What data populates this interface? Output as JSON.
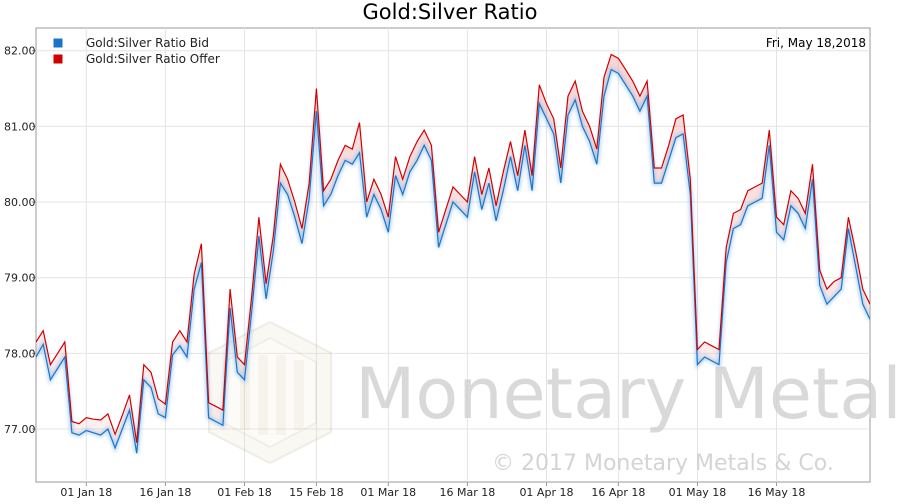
{
  "chart_data": {
    "type": "line",
    "title": "Gold:Silver Ratio",
    "date_label": "Fri, May 18,2018",
    "ylim": [
      76.3,
      82.3
    ],
    "y_ticks": [
      "82.00",
      "81.00",
      "80.00",
      "79.00",
      "78.00",
      "77.00"
    ],
    "y_tick_values": [
      82,
      81,
      80,
      79,
      78,
      77
    ],
    "x_ticks": [
      {
        "label": "01 Jan 18",
        "index": 7
      },
      {
        "label": "16 Jan 18",
        "index": 18
      },
      {
        "label": "01 Feb 18",
        "index": 29
      },
      {
        "label": "15 Feb 18",
        "index": 39
      },
      {
        "label": "01 Mar 18",
        "index": 49
      },
      {
        "label": "16 Mar 18",
        "index": 60
      },
      {
        "label": "01 Apr 18",
        "index": 71
      },
      {
        "label": "16 Apr 18",
        "index": 81
      },
      {
        "label": "01 May 18",
        "index": 92
      },
      {
        "label": "16 May 18",
        "index": 103
      }
    ],
    "grid": true,
    "legend_position": "top-left",
    "series": [
      {
        "name": "Gold:Silver Ratio Bid",
        "color": "#1a75c9",
        "values": [
          77.95,
          78.12,
          77.65,
          77.8,
          77.95,
          76.95,
          76.92,
          76.98,
          76.95,
          76.92,
          77.0,
          76.75,
          77.0,
          77.25,
          76.68,
          77.65,
          77.55,
          77.2,
          77.15,
          77.98,
          78.1,
          77.95,
          78.85,
          79.2,
          77.15,
          77.1,
          77.05,
          78.6,
          77.75,
          77.65,
          78.55,
          79.55,
          78.72,
          79.35,
          80.25,
          80.1,
          79.8,
          79.45,
          80.05,
          81.2,
          79.95,
          80.1,
          80.35,
          80.55,
          80.5,
          80.65,
          79.8,
          80.1,
          79.9,
          79.6,
          80.35,
          80.1,
          80.4,
          80.55,
          80.75,
          80.55,
          79.4,
          79.7,
          80.0,
          79.9,
          79.8,
          80.4,
          79.9,
          80.25,
          79.75,
          80.15,
          80.6,
          80.15,
          80.75,
          80.15,
          81.3,
          81.1,
          80.9,
          80.25,
          81.15,
          81.35,
          81.0,
          80.8,
          80.5,
          81.4,
          81.75,
          81.7,
          81.55,
          81.4,
          81.2,
          81.4,
          80.25,
          80.25,
          80.55,
          80.85,
          80.9,
          80.1,
          77.85,
          77.95,
          77.9,
          77.85,
          79.2,
          79.65,
          79.7,
          79.95,
          80.0,
          80.05,
          80.75,
          79.6,
          79.5,
          79.95,
          79.85,
          79.65,
          80.3,
          78.9,
          78.65,
          78.75,
          78.85,
          79.65,
          79.15,
          78.65,
          78.45
        ]
      },
      {
        "name": "Gold:Silver Ratio Offer",
        "color": "#d10000",
        "values": [
          78.15,
          78.3,
          77.85,
          78.0,
          78.15,
          77.1,
          77.07,
          77.15,
          77.13,
          77.12,
          77.2,
          76.93,
          77.18,
          77.45,
          76.82,
          77.85,
          77.75,
          77.4,
          77.33,
          78.15,
          78.3,
          78.15,
          79.05,
          79.45,
          77.35,
          77.3,
          77.25,
          78.85,
          77.95,
          77.85,
          78.75,
          79.8,
          78.92,
          79.55,
          80.5,
          80.3,
          80.0,
          79.65,
          80.25,
          81.5,
          80.15,
          80.3,
          80.55,
          80.75,
          80.7,
          81.05,
          80.0,
          80.3,
          80.1,
          79.8,
          80.6,
          80.3,
          80.6,
          80.8,
          80.95,
          80.75,
          79.6,
          79.9,
          80.2,
          80.1,
          80.0,
          80.6,
          80.1,
          80.45,
          79.95,
          80.4,
          80.8,
          80.35,
          80.95,
          80.35,
          81.55,
          81.3,
          81.1,
          80.45,
          81.4,
          81.6,
          81.2,
          81.0,
          80.7,
          81.65,
          81.95,
          81.9,
          81.75,
          81.6,
          81.4,
          81.6,
          80.45,
          80.45,
          80.75,
          81.1,
          81.15,
          80.3,
          78.05,
          78.15,
          78.1,
          78.05,
          79.4,
          79.85,
          79.9,
          80.15,
          80.2,
          80.25,
          80.95,
          79.8,
          79.7,
          80.15,
          80.05,
          79.85,
          80.5,
          79.1,
          78.85,
          78.95,
          79.0,
          79.8,
          79.35,
          78.85,
          78.65
        ]
      }
    ]
  },
  "watermark": {
    "brand_text": "Monetary Metals",
    "copyright_text": "© 2017 Monetary Metals & Co."
  }
}
